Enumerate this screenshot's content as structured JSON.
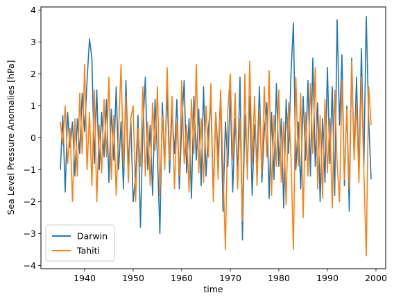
{
  "chart_data": {
    "type": "line",
    "xlabel": "time",
    "ylabel": "Sea Level Pressure Anomalies [hPa]",
    "xlim": [
      1931,
      2002
    ],
    "ylim": [
      -4.1,
      4.1
    ],
    "xticks": [
      1940,
      1950,
      1960,
      1970,
      1980,
      1990,
      2000
    ],
    "yticks": [
      -4,
      -3,
      -2,
      -1,
      0,
      1,
      2,
      3,
      4
    ],
    "grid": false,
    "legend_position": "lower-left",
    "series": [
      {
        "name": "Darwin",
        "color": "#1f77b4",
        "x": [
          1935.0,
          1935.5,
          1936.0,
          1936.5,
          1937.0,
          1937.5,
          1938.0,
          1938.5,
          1939.0,
          1939.5,
          1940.0,
          1940.5,
          1941.0,
          1941.5,
          1942.0,
          1942.5,
          1943.0,
          1943.5,
          1944.0,
          1944.5,
          1945.0,
          1945.5,
          1946.0,
          1946.5,
          1947.0,
          1947.5,
          1948.0,
          1948.5,
          1949.0,
          1949.5,
          1950.0,
          1950.5,
          1951.0,
          1951.5,
          1952.0,
          1952.5,
          1953.0,
          1953.5,
          1954.0,
          1954.5,
          1955.0,
          1955.5,
          1956.0,
          1956.5,
          1957.0,
          1957.5,
          1958.0,
          1958.5,
          1959.0,
          1959.5,
          1960.0,
          1960.5,
          1961.0,
          1961.5,
          1962.0,
          1962.5,
          1963.0,
          1963.5,
          1964.0,
          1964.5,
          1965.0,
          1965.5,
          1966.0,
          1966.5,
          1967.0,
          1967.5,
          1968.0,
          1968.5,
          1969.0,
          1969.5,
          1970.0,
          1970.5,
          1971.0,
          1971.5,
          1972.0,
          1972.5,
          1973.0,
          1973.5,
          1974.0,
          1974.5,
          1975.0,
          1975.5,
          1976.0,
          1976.5,
          1977.0,
          1977.5,
          1978.0,
          1978.5,
          1979.0,
          1979.5,
          1980.0,
          1980.5,
          1981.0,
          1981.5,
          1982.0,
          1982.5,
          1983.0,
          1983.5,
          1984.0,
          1984.5,
          1985.0,
          1985.5,
          1986.0,
          1986.5,
          1987.0,
          1987.5,
          1988.0,
          1988.5,
          1989.0,
          1989.5,
          1990.0,
          1990.5,
          1991.0,
          1991.5,
          1992.0,
          1992.5,
          1993.0,
          1993.5,
          1994.0,
          1994.5,
          1995.0,
          1995.5,
          1996.0,
          1996.5,
          1997.0,
          1997.5,
          1998.0,
          1998.5,
          1999.0
        ],
        "y": [
          -1.0,
          0.7,
          -1.7,
          0.8,
          -0.3,
          0.5,
          -1.2,
          0.6,
          -0.5,
          1.4,
          0.2,
          1.8,
          3.1,
          2.5,
          -0.8,
          1.5,
          -1.0,
          0.8,
          -0.6,
          1.2,
          -1.4,
          0.9,
          -0.7,
          1.6,
          -1.0,
          0.5,
          -1.6,
          1.8,
          -0.9,
          0.6,
          -2.0,
          -1.2,
          0.7,
          -2.8,
          0.3,
          1.9,
          -1.0,
          0.4,
          -1.8,
          1.2,
          -0.6,
          -3.0,
          1.1,
          -0.8,
          1.5,
          -1.1,
          0.9,
          -0.5,
          1.2,
          -1.6,
          0.4,
          1.8,
          -1.1,
          0.6,
          -1.9,
          1.3,
          -0.7,
          0.9,
          -1.5,
          1.6,
          -1.2,
          0.3,
          1.1,
          -1.8,
          0.8,
          -0.6,
          1.4,
          -2.3,
          0.5,
          -0.9,
          1.5,
          -1.7,
          0.6,
          -1.1,
          1.9,
          -3.2,
          0.7,
          -1.0,
          1.3,
          -1.8,
          0.4,
          -0.8,
          1.6,
          -1.4,
          0.2,
          1.1,
          -1.9,
          0.8,
          -1.3,
          1.7,
          -0.9,
          0.6,
          -2.2,
          1.2,
          -0.5,
          2.0,
          3.6,
          -1.0,
          0.5,
          -1.6,
          1.3,
          -0.7,
          1.8,
          -1.2,
          2.5,
          -0.9,
          1.1,
          -2.0,
          0.6,
          -1.4,
          2.2,
          -0.8,
          1.6,
          -1.8,
          3.7,
          0.4,
          2.6,
          -1.5,
          1.0,
          -2.3,
          2.5,
          -0.6,
          1.9,
          -1.2,
          2.8,
          -0.9,
          3.8,
          0.6,
          -1.3
        ]
      },
      {
        "name": "Tahiti",
        "color": "#ff7f0e",
        "x": [
          1935.0,
          1935.5,
          1936.0,
          1936.5,
          1937.0,
          1937.5,
          1938.0,
          1938.5,
          1939.0,
          1939.5,
          1940.0,
          1940.5,
          1941.0,
          1941.5,
          1942.0,
          1942.5,
          1943.0,
          1943.5,
          1944.0,
          1944.5,
          1945.0,
          1945.5,
          1946.0,
          1946.5,
          1947.0,
          1947.5,
          1948.0,
          1948.5,
          1949.0,
          1949.5,
          1950.0,
          1950.5,
          1951.0,
          1951.5,
          1952.0,
          1952.5,
          1953.0,
          1953.5,
          1954.0,
          1954.5,
          1955.0,
          1955.5,
          1956.0,
          1956.5,
          1957.0,
          1957.5,
          1958.0,
          1958.5,
          1959.0,
          1959.5,
          1960.0,
          1960.5,
          1961.0,
          1961.5,
          1962.0,
          1962.5,
          1963.0,
          1963.5,
          1964.0,
          1964.5,
          1965.0,
          1965.5,
          1966.0,
          1966.5,
          1967.0,
          1967.5,
          1968.0,
          1968.5,
          1969.0,
          1969.5,
          1970.0,
          1970.5,
          1971.0,
          1971.5,
          1972.0,
          1972.5,
          1973.0,
          1973.5,
          1974.0,
          1974.5,
          1975.0,
          1975.5,
          1976.0,
          1976.5,
          1977.0,
          1977.5,
          1978.0,
          1978.5,
          1979.0,
          1979.5,
          1980.0,
          1980.5,
          1981.0,
          1981.5,
          1982.0,
          1982.5,
          1983.0,
          1983.5,
          1984.0,
          1984.5,
          1985.0,
          1985.5,
          1986.0,
          1986.5,
          1987.0,
          1987.5,
          1988.0,
          1988.5,
          1989.0,
          1989.5,
          1990.0,
          1990.5,
          1991.0,
          1991.5,
          1992.0,
          1992.5,
          1993.0,
          1993.5,
          1994.0,
          1994.5,
          1995.0,
          1995.5,
          1996.0,
          1996.5,
          1997.0,
          1997.5,
          1998.0,
          1998.5,
          1999.0
        ],
        "y": [
          0.5,
          -0.2,
          1.0,
          -0.8,
          0.3,
          -2.0,
          0.6,
          -1.2,
          1.4,
          -0.5,
          2.3,
          -1.0,
          0.8,
          -1.5,
          1.5,
          -2.0,
          0.4,
          -1.1,
          1.2,
          -0.6,
          1.9,
          -1.3,
          0.7,
          -1.8,
          0.2,
          2.3,
          -0.9,
          1.3,
          -1.4,
          0.6,
          1.0,
          -2.0,
          0.3,
          -0.9,
          1.6,
          -1.2,
          0.5,
          -1.5,
          1.1,
          -0.4,
          1.6,
          -1.8,
          0.7,
          -1.0,
          2.2,
          -0.7,
          1.3,
          -1.6,
          0.5,
          -1.2,
          1.8,
          -0.8,
          0.4,
          -1.7,
          1.2,
          -0.5,
          2.3,
          -1.1,
          0.6,
          -1.4,
          1.0,
          -0.6,
          1.7,
          -2.0,
          0.8,
          -1.3,
          1.5,
          -1.0,
          -3.5,
          0.9,
          2.0,
          -0.7,
          1.4,
          -1.6,
          0.6,
          -2.6,
          2.0,
          -1.3,
          2.4,
          -0.8,
          1.3,
          -1.5,
          0.9,
          -1.1,
          1.6,
          -0.6,
          2.1,
          -1.8,
          0.7,
          -0.9,
          1.5,
          -1.4,
          0.5,
          -2.1,
          1.1,
          -0.6,
          -3.5,
          1.9,
          -0.9,
          1.4,
          -2.5,
          0.8,
          -1.2,
          1.7,
          -0.5,
          2.2,
          -1.6,
          0.7,
          -1.9,
          1.2,
          -1.1,
          0.6,
          -2.2,
          1.5,
          -0.8,
          -2.0,
          1.8,
          -1.3,
          0.9,
          -1.6,
          2.4,
          -0.7,
          1.1,
          -1.4,
          1.9,
          -1.0,
          -3.7,
          1.6,
          0.4
        ]
      }
    ]
  }
}
